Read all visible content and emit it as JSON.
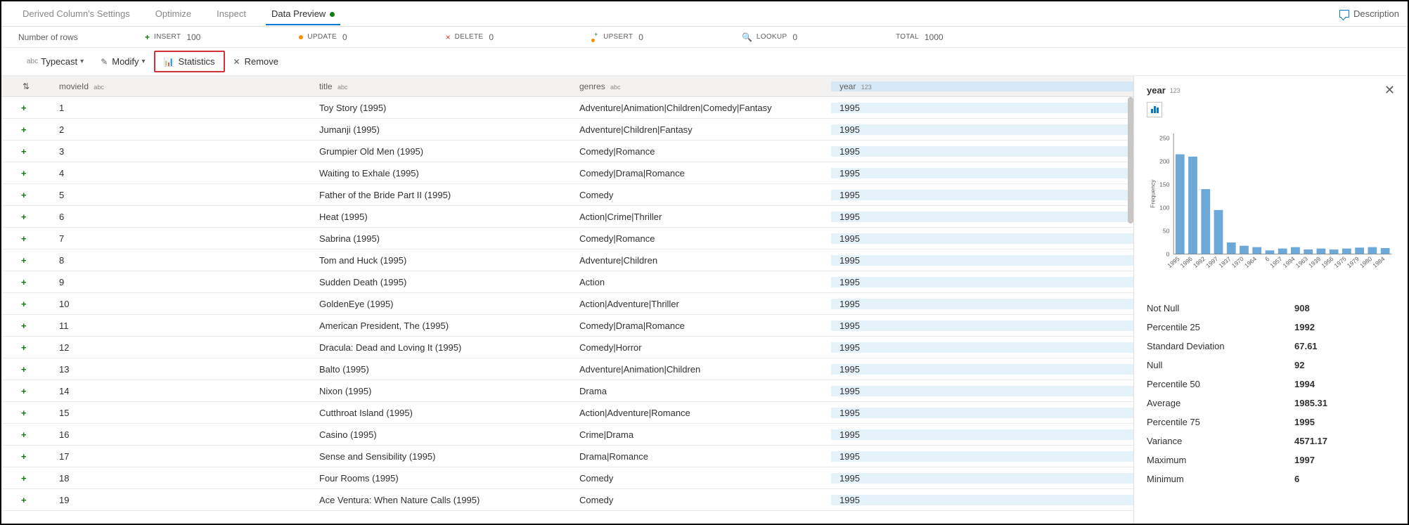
{
  "topTabs": {
    "items": [
      {
        "label": "Derived Column's Settings",
        "active": false
      },
      {
        "label": "Optimize",
        "active": false
      },
      {
        "label": "Inspect",
        "active": false
      },
      {
        "label": "Data Preview",
        "active": true,
        "dot": true
      }
    ],
    "descriptionLabel": "Description"
  },
  "infoBar": {
    "rowsLabel": "Number of rows",
    "metrics": {
      "insert": {
        "name": "INSERT",
        "value": "100"
      },
      "update": {
        "name": "UPDATE",
        "value": "0"
      },
      "delete": {
        "name": "DELETE",
        "value": "0"
      },
      "upsert": {
        "name": "UPSERT",
        "value": "0"
      },
      "lookup": {
        "name": "LOOKUP",
        "value": "0"
      },
      "total": {
        "name": "TOTAL",
        "value": "1000"
      }
    }
  },
  "toolbar": {
    "typecast": "Typecast",
    "modify": "Modify",
    "statistics": "Statistics",
    "remove": "Remove",
    "abc": "abc"
  },
  "columns": {
    "movieid": {
      "label": "movieId",
      "type": "abc"
    },
    "title": {
      "label": "title",
      "type": "abc"
    },
    "genres": {
      "label": "genres",
      "type": "abc"
    },
    "year": {
      "label": "year",
      "type": "123"
    }
  },
  "rows": [
    {
      "movieid": "1",
      "title": "Toy Story (1995)",
      "genres": "Adventure|Animation|Children|Comedy|Fantasy",
      "year": "1995"
    },
    {
      "movieid": "2",
      "title": "Jumanji (1995)",
      "genres": "Adventure|Children|Fantasy",
      "year": "1995"
    },
    {
      "movieid": "3",
      "title": "Grumpier Old Men (1995)",
      "genres": "Comedy|Romance",
      "year": "1995"
    },
    {
      "movieid": "4",
      "title": "Waiting to Exhale (1995)",
      "genres": "Comedy|Drama|Romance",
      "year": "1995"
    },
    {
      "movieid": "5",
      "title": "Father of the Bride Part II (1995)",
      "genres": "Comedy",
      "year": "1995"
    },
    {
      "movieid": "6",
      "title": "Heat (1995)",
      "genres": "Action|Crime|Thriller",
      "year": "1995"
    },
    {
      "movieid": "7",
      "title": "Sabrina (1995)",
      "genres": "Comedy|Romance",
      "year": "1995"
    },
    {
      "movieid": "8",
      "title": "Tom and Huck (1995)",
      "genres": "Adventure|Children",
      "year": "1995"
    },
    {
      "movieid": "9",
      "title": "Sudden Death (1995)",
      "genres": "Action",
      "year": "1995"
    },
    {
      "movieid": "10",
      "title": "GoldenEye (1995)",
      "genres": "Action|Adventure|Thriller",
      "year": "1995"
    },
    {
      "movieid": "11",
      "title": "American President, The (1995)",
      "genres": "Comedy|Drama|Romance",
      "year": "1995"
    },
    {
      "movieid": "12",
      "title": "Dracula: Dead and Loving It (1995)",
      "genres": "Comedy|Horror",
      "year": "1995"
    },
    {
      "movieid": "13",
      "title": "Balto (1995)",
      "genres": "Adventure|Animation|Children",
      "year": "1995"
    },
    {
      "movieid": "14",
      "title": "Nixon (1995)",
      "genres": "Drama",
      "year": "1995"
    },
    {
      "movieid": "15",
      "title": "Cutthroat Island (1995)",
      "genres": "Action|Adventure|Romance",
      "year": "1995"
    },
    {
      "movieid": "16",
      "title": "Casino (1995)",
      "genres": "Crime|Drama",
      "year": "1995"
    },
    {
      "movieid": "17",
      "title": "Sense and Sensibility (1995)",
      "genres": "Drama|Romance",
      "year": "1995"
    },
    {
      "movieid": "18",
      "title": "Four Rooms (1995)",
      "genres": "Comedy",
      "year": "1995"
    },
    {
      "movieid": "19",
      "title": "Ace Ventura: When Nature Calls (1995)",
      "genres": "Comedy",
      "year": "1995"
    }
  ],
  "rightPanel": {
    "title": "year",
    "titleType": "123",
    "chart": {
      "type": "bar",
      "ylabel": "Frequency",
      "ytick_values": [
        0,
        50,
        100,
        150,
        200,
        250
      ],
      "ylim": [
        0,
        260
      ],
      "bar_color": "#6ca9d9",
      "axis_color": "#8a8886",
      "label_color": "#605e5c",
      "label_fontsize": 9,
      "categories": [
        "1995",
        "1996",
        "1992",
        "1997",
        "1937",
        "1970",
        "1964",
        "6",
        "1957",
        "1994",
        "1963",
        "1939",
        "1956",
        "1975",
        "1979",
        "1980",
        "1984"
      ],
      "values": [
        215,
        210,
        140,
        95,
        25,
        18,
        15,
        8,
        12,
        15,
        10,
        12,
        10,
        12,
        14,
        15,
        13
      ]
    },
    "stats": [
      {
        "k": "Not Null",
        "v": "908"
      },
      {
        "k": "Percentile 25",
        "v": "1992"
      },
      {
        "k": "Standard Deviation",
        "v": "67.61"
      },
      {
        "k": "Null",
        "v": "92"
      },
      {
        "k": "Percentile 50",
        "v": "1994"
      },
      {
        "k": "Average",
        "v": "1985.31"
      },
      {
        "k": "Percentile 75",
        "v": "1995"
      },
      {
        "k": "Variance",
        "v": "4571.17"
      },
      {
        "k": "Maximum",
        "v": "1997"
      },
      {
        "k": "Minimum",
        "v": "6"
      }
    ]
  }
}
